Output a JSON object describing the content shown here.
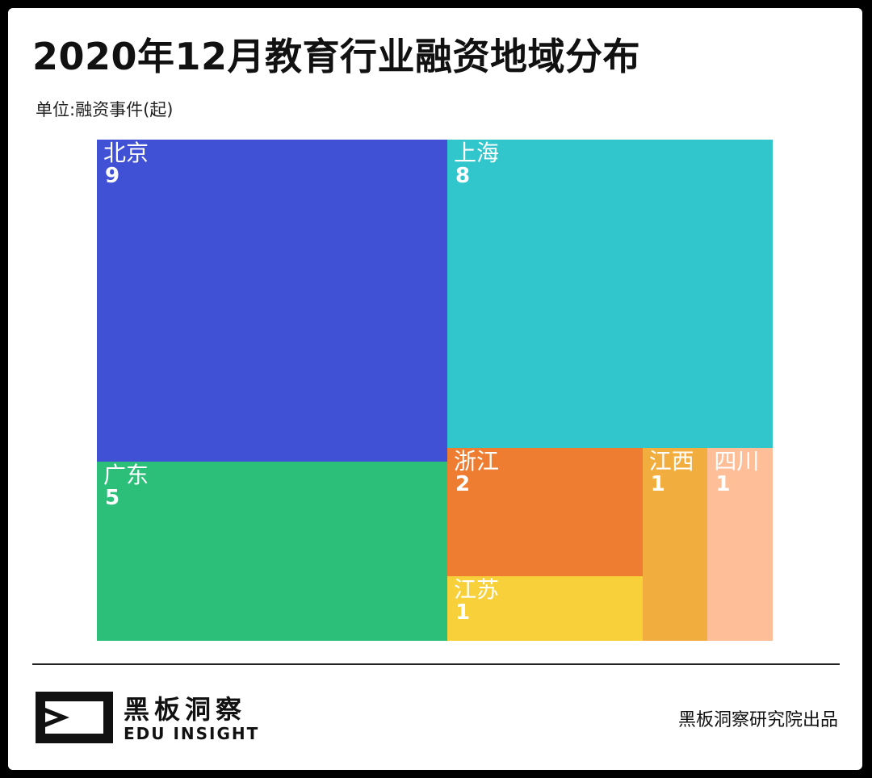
{
  "header": {
    "title": "2020年12月教育行业融资地域分布",
    "unit": "单位:融资事件(起)"
  },
  "chart_data": {
    "type": "treemap",
    "title": "2020年12月教育行业融资地域分布",
    "unit": "单位:融资事件(起)",
    "items": [
      {
        "name": "北京",
        "value": 9,
        "color": "#4051d6"
      },
      {
        "name": "上海",
        "value": 8,
        "color": "#31c6cb"
      },
      {
        "name": "广东",
        "value": 5,
        "color": "#2bbf79"
      },
      {
        "name": "浙江",
        "value": 2,
        "color": "#ee7d31"
      },
      {
        "name": "江苏",
        "value": 1,
        "color": "#f8d03a"
      },
      {
        "name": "江西",
        "value": 1,
        "color": "#f1ad3d"
      },
      {
        "name": "四川",
        "value": 1,
        "color": "#fdbe98"
      }
    ]
  },
  "footer": {
    "brand_cn": "黑板洞察",
    "brand_en": "EDU INSIGHT",
    "credit": "黑板洞察研究院出品"
  }
}
